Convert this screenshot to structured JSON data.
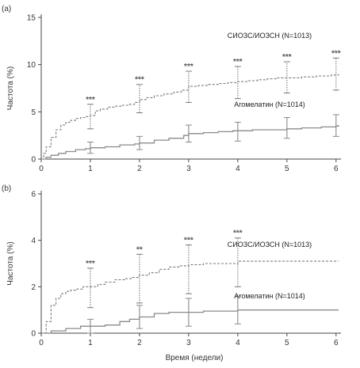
{
  "figure": {
    "xlabel": "Время (недели)"
  },
  "chart_data": [
    {
      "panel_label": "(a)",
      "type": "line",
      "ylabel": "Частота (%)",
      "xlim": [
        0,
        6.1
      ],
      "ylim": [
        0,
        15
      ],
      "xticks": [
        0,
        1,
        2,
        3,
        4,
        5,
        6
      ],
      "yticks": [
        0,
        5,
        10,
        15
      ],
      "grid": false,
      "series": [
        {
          "name": "СИОЗС/ИОЗСН (N=1013)",
          "style": "dashed",
          "color": "#7a7a7a",
          "x": [
            0,
            0.05,
            0.1,
            0.2,
            0.3,
            0.4,
            0.5,
            0.6,
            0.7,
            0.8,
            0.9,
            1.0,
            1.1,
            1.2,
            1.35,
            1.5,
            1.65,
            1.8,
            1.9,
            2.0,
            2.15,
            2.3,
            2.5,
            2.7,
            2.85,
            3.0,
            3.2,
            3.4,
            3.6,
            3.8,
            4.0,
            4.2,
            4.4,
            4.6,
            4.8,
            5.0,
            5.3,
            5.6,
            5.9,
            6.05
          ],
          "values": [
            0,
            0.6,
            1.3,
            2.3,
            3.1,
            3.6,
            3.9,
            4.1,
            4.3,
            4.4,
            4.5,
            4.6,
            5.1,
            5.3,
            5.5,
            5.6,
            5.7,
            5.8,
            6.0,
            6.3,
            6.5,
            6.7,
            6.9,
            7.1,
            7.3,
            7.7,
            7.8,
            7.9,
            8.0,
            8.1,
            8.2,
            8.3,
            8.4,
            8.5,
            8.6,
            8.6,
            8.7,
            8.8,
            8.9,
            9.0
          ],
          "error_bars": [
            {
              "x": 1,
              "y": 4.6,
              "low": 3.2,
              "high": 5.8,
              "label": "***"
            },
            {
              "x": 2,
              "y": 6.3,
              "low": 4.9,
              "high": 7.9,
              "label": "***"
            },
            {
              "x": 3,
              "y": 7.7,
              "low": 6.0,
              "high": 9.3,
              "label": "***"
            },
            {
              "x": 4,
              "y": 8.2,
              "low": 6.4,
              "high": 9.8,
              "label": "***"
            },
            {
              "x": 5,
              "y": 8.6,
              "low": 7.0,
              "high": 10.3,
              "label": "***"
            },
            {
              "x": 6,
              "y": 9.0,
              "low": 7.3,
              "high": 10.7,
              "label": "***"
            }
          ]
        },
        {
          "name": "Агомелатин (N=1014)",
          "style": "solid",
          "color": "#8a8a8a",
          "x": [
            0,
            0.1,
            0.2,
            0.35,
            0.5,
            0.7,
            0.9,
            1.0,
            1.3,
            1.6,
            1.9,
            2.0,
            2.3,
            2.6,
            2.9,
            3.0,
            3.3,
            3.6,
            3.9,
            4.0,
            4.3,
            4.6,
            5.0,
            5.3,
            5.7,
            6.0,
            6.05
          ],
          "values": [
            0,
            0.2,
            0.4,
            0.6,
            0.8,
            1.0,
            1.1,
            1.2,
            1.3,
            1.5,
            1.6,
            1.7,
            2.0,
            2.2,
            2.5,
            2.7,
            2.8,
            2.9,
            3.0,
            3.0,
            3.1,
            3.1,
            3.2,
            3.3,
            3.4,
            3.5,
            3.6
          ],
          "error_bars": [
            {
              "x": 1,
              "y": 1.2,
              "low": 0.6,
              "high": 1.8
            },
            {
              "x": 2,
              "y": 1.7,
              "low": 1.0,
              "high": 2.4
            },
            {
              "x": 3,
              "y": 2.7,
              "low": 1.8,
              "high": 3.6
            },
            {
              "x": 4,
              "y": 3.0,
              "low": 1.9,
              "high": 3.9
            },
            {
              "x": 5,
              "y": 3.2,
              "low": 2.2,
              "high": 4.4
            },
            {
              "x": 6,
              "y": 3.6,
              "low": 2.4,
              "high": 4.7
            }
          ]
        }
      ]
    },
    {
      "panel_label": "(b)",
      "type": "line",
      "ylabel": "Частота (%)",
      "xlim": [
        0,
        6.1
      ],
      "ylim": [
        0,
        6
      ],
      "xticks": [
        0,
        1,
        2,
        3,
        4,
        5,
        6
      ],
      "yticks": [
        0,
        2,
        4,
        6
      ],
      "grid": false,
      "series": [
        {
          "name": "СИОЗС/ИОЗСН (N=1013)",
          "style": "dashed",
          "color": "#7a7a7a",
          "x": [
            0,
            0.1,
            0.2,
            0.3,
            0.4,
            0.5,
            0.6,
            0.7,
            0.85,
            1.0,
            1.15,
            1.3,
            1.5,
            1.7,
            1.85,
            2.0,
            2.2,
            2.4,
            2.6,
            2.8,
            3.0,
            3.3,
            3.6,
            3.9,
            4.0,
            4.5,
            5.0,
            5.5,
            6.0,
            6.05
          ],
          "values": [
            0,
            0.5,
            1.2,
            1.5,
            1.7,
            1.8,
            1.85,
            1.9,
            2.0,
            2.0,
            2.1,
            2.2,
            2.3,
            2.35,
            2.4,
            2.5,
            2.6,
            2.75,
            2.85,
            2.9,
            2.95,
            3.0,
            3.0,
            3.0,
            3.1,
            3.1,
            3.1,
            3.1,
            3.1,
            3.1
          ],
          "error_bars": [
            {
              "x": 1,
              "y": 2.0,
              "low": 1.1,
              "high": 2.8,
              "label": "***"
            },
            {
              "x": 2,
              "y": 2.5,
              "low": 1.3,
              "high": 3.4,
              "label": "**"
            },
            {
              "x": 3,
              "y": 2.95,
              "low": 1.7,
              "high": 3.8,
              "label": "***"
            },
            {
              "x": 4,
              "y": 3.1,
              "low": 2.0,
              "high": 4.1,
              "label": "***"
            }
          ]
        },
        {
          "name": "Агомелатин (N=1014)",
          "style": "solid",
          "color": "#8a8a8a",
          "x": [
            0,
            0.2,
            0.5,
            0.8,
            1.0,
            1.3,
            1.6,
            1.8,
            2.0,
            2.3,
            2.6,
            3.0,
            3.3,
            3.6,
            4.0,
            4.5,
            5.0,
            6.0,
            6.05
          ],
          "values": [
            0,
            0.1,
            0.2,
            0.3,
            0.3,
            0.35,
            0.5,
            0.6,
            0.7,
            0.85,
            0.9,
            0.9,
            0.95,
            0.95,
            1.0,
            1.0,
            1.0,
            1.0,
            1.0
          ],
          "error_bars": [
            {
              "x": 1,
              "y": 0.3,
              "low": 0.0,
              "high": 0.6
            },
            {
              "x": 2,
              "y": 0.7,
              "low": 0.2,
              "high": 1.2
            },
            {
              "x": 3,
              "y": 0.9,
              "low": 0.3,
              "high": 1.5
            },
            {
              "x": 4,
              "y": 1.0,
              "low": 0.4,
              "high": 1.6
            }
          ]
        }
      ]
    }
  ]
}
